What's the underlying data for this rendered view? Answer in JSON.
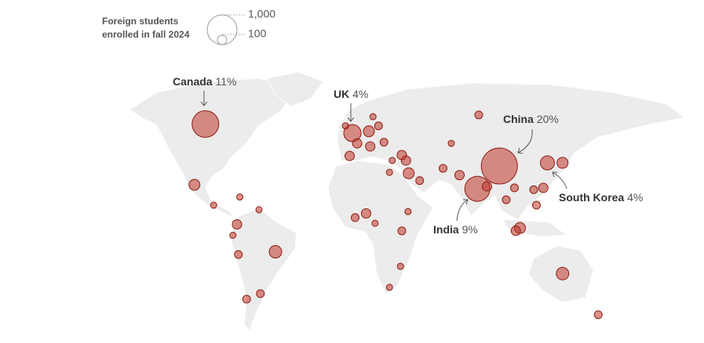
{
  "legend": {
    "title_lines": [
      "Foreign students",
      "enrolled in fall 2024"
    ],
    "sizes": [
      {
        "value": 1000,
        "label": "1,000"
      },
      {
        "value": 100,
        "label": "100"
      }
    ]
  },
  "annotations": [
    {
      "name": "Canada",
      "share": "11%"
    },
    {
      "name": "UK",
      "share": "4%"
    },
    {
      "name": "China",
      "share": "20%"
    },
    {
      "name": "India",
      "share": "9%"
    },
    {
      "name": "South Korea",
      "share": "4%"
    }
  ],
  "bubbles": [
    {
      "lon": -109,
      "lat": 58,
      "value": 800
    },
    {
      "lon": -2,
      "lat": 53,
      "value": 335
    },
    {
      "lon": 105,
      "lat": 35,
      "value": 1465
    },
    {
      "lon": 89,
      "lat": 22.5,
      "value": 709
    },
    {
      "lon": 140,
      "lat": 36.7,
      "value": 224
    },
    {
      "lon": 151,
      "lat": 36.7,
      "value": 136
    },
    {
      "lon": -58,
      "lat": -12,
      "value": 177
    },
    {
      "lon": -117,
      "lat": 24.7,
      "value": 136
    },
    {
      "lon": -86,
      "lat": 3,
      "value": 100
    },
    {
      "lon": -85,
      "lat": -13.5,
      "value": 69
    },
    {
      "lon": 8,
      "lat": 9,
      "value": 100
    },
    {
      "lon": 120,
      "lat": 1,
      "value": 136
    },
    {
      "lon": 117,
      "lat": -0.5,
      "value": 100
    },
    {
      "lon": 137,
      "lat": 23,
      "value": 100
    },
    {
      "lon": 151,
      "lat": -24,
      "value": 177
    },
    {
      "lon": 177,
      "lat": -46.5,
      "value": 69
    },
    {
      "lon": 39,
      "lat": 31,
      "value": 136
    },
    {
      "lon": 37,
      "lat": 38,
      "value": 100
    },
    {
      "lon": 1.5,
      "lat": 47.4,
      "value": 100
    },
    {
      "lon": 10,
      "lat": 54,
      "value": 136
    },
    {
      "lon": -4,
      "lat": 40.5,
      "value": 100
    },
    {
      "lon": 11,
      "lat": 45.7,
      "value": 100
    },
    {
      "lon": 34,
      "lat": 41,
      "value": 100
    },
    {
      "lon": 96,
      "lat": 23.8,
      "value": 100
    },
    {
      "lon": 130,
      "lat": 22,
      "value": 69
    },
    {
      "lon": 132,
      "lat": 13.5,
      "value": 69
    },
    {
      "lon": 110,
      "lat": 16.5,
      "value": 69
    },
    {
      "lon": 34,
      "lat": -0.6,
      "value": 69
    },
    {
      "lon": 0,
      "lat": 6.7,
      "value": 69
    },
    {
      "lon": 25,
      "lat": 31.5,
      "value": 44
    },
    {
      "lon": -69,
      "lat": -35,
      "value": 69
    },
    {
      "lon": -79,
      "lat": -38,
      "value": 69
    },
    {
      "lon": -70,
      "lat": 11,
      "value": 44
    },
    {
      "lon": -89,
      "lat": -3,
      "value": 44
    },
    {
      "lon": 90,
      "lat": 63,
      "value": 69
    },
    {
      "lon": 70,
      "lat": 47.4,
      "value": 44
    },
    {
      "lon": 76,
      "lat": 30,
      "value": 100
    },
    {
      "lon": -84,
      "lat": 18,
      "value": 44
    },
    {
      "lon": -103,
      "lat": 13.5,
      "value": 44
    },
    {
      "lon": 64,
      "lat": 33.7,
      "value": 69
    },
    {
      "lon": 116,
      "lat": 23,
      "value": 69
    },
    {
      "lon": 21,
      "lat": 48,
      "value": 69
    },
    {
      "lon": 17,
      "lat": 57,
      "value": 69
    },
    {
      "lon": 13,
      "lat": 62,
      "value": 44
    },
    {
      "lon": -7,
      "lat": 57,
      "value": 44
    },
    {
      "lon": 27,
      "lat": 38,
      "value": 44
    },
    {
      "lon": 47,
      "lat": 27,
      "value": 69
    },
    {
      "lon": 38.5,
      "lat": 10,
      "value": 44
    },
    {
      "lon": 25,
      "lat": -31.5,
      "value": 44
    },
    {
      "lon": 33,
      "lat": -20,
      "value": 44
    },
    {
      "lon": 14.5,
      "lat": 3.6,
      "value": 44
    }
  ]
}
